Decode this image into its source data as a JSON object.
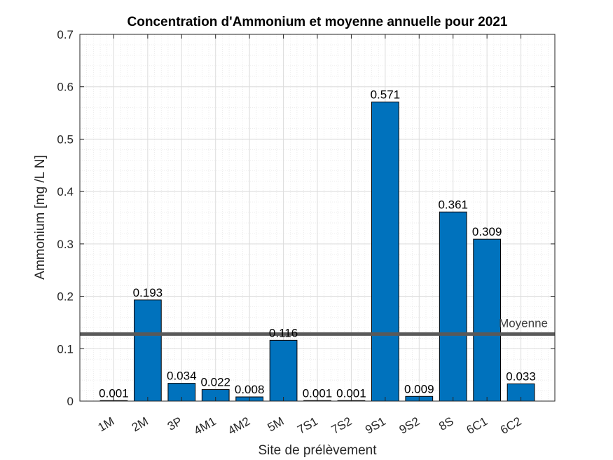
{
  "chart_data": {
    "type": "bar",
    "title": "Concentration d'Ammonium et moyenne annuelle pour 2021",
    "xlabel": "Site de prélèvement",
    "ylabel": "Ammonium [mg /L N]",
    "categories": [
      "1M",
      "2M",
      "3P",
      "4M1",
      "4M2",
      "5M",
      "7S1",
      "7S2",
      "9S1",
      "9S2",
      "8S",
      "6C1",
      "6C2"
    ],
    "values": [
      0.001,
      0.193,
      0.034,
      0.022,
      0.008,
      0.116,
      0.001,
      0.001,
      0.571,
      0.009,
      0.361,
      0.309,
      0.033
    ],
    "data_labels": [
      "0.001",
      "0.193",
      "0.034",
      "0.022",
      "0.008",
      "0.116",
      "0.001",
      "0.001",
      "0.571",
      "0.009",
      "0.361",
      "0.309",
      "0.033"
    ],
    "ylim": [
      0,
      0.7
    ],
    "yticks": [
      0,
      0.1,
      0.2,
      0.3,
      0.4,
      0.5,
      0.6,
      0.7
    ],
    "ytick_labels": [
      "0",
      "0.1",
      "0.2",
      "0.3",
      "0.4",
      "0.5",
      "0.6",
      "0.7"
    ],
    "mean_line": {
      "value": 0.128,
      "label": "Moyenne"
    },
    "grid": true,
    "minor_grid": true,
    "colors": {
      "bar": "#0072BD",
      "mean_line": "#595959"
    }
  }
}
